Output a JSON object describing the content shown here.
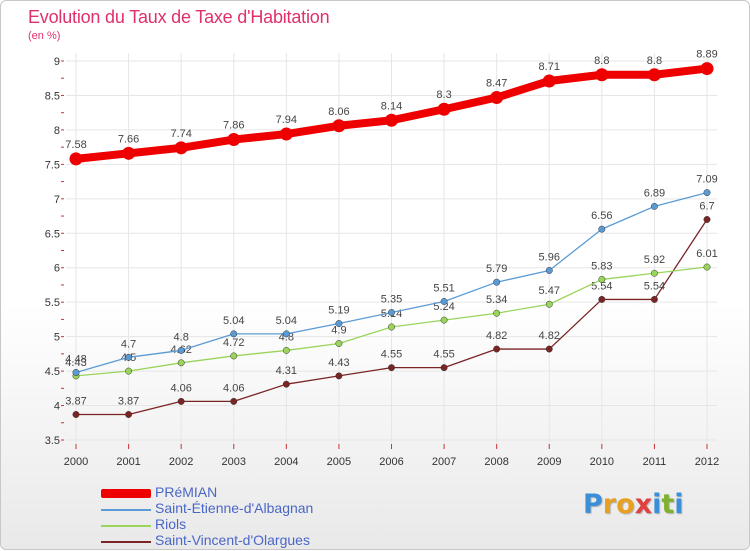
{
  "header": {
    "title": "Evolution du Taux de Taxe d'Habitation",
    "subtitle": "(en %)"
  },
  "logo": {
    "text": "Proxiti",
    "letters": [
      "P",
      "r",
      "o",
      "x",
      "i",
      "t",
      "i"
    ],
    "colors": [
      "#3a8fd6",
      "#e8a020",
      "#e8a020",
      "#e04040",
      "#3a8fd6",
      "#80b030",
      "#3a8fd6"
    ]
  },
  "colors": {
    "title": "#e0306c",
    "legend_text": "#4a67c8",
    "grid": "#e6e6e6",
    "axis_tick": "#cc3333"
  },
  "chart_data": {
    "type": "line",
    "title": "Evolution du Taux de Taxe d'Habitation",
    "subtitle": "(en %)",
    "x": [
      "2000",
      "2001",
      "2002",
      "2003",
      "2004",
      "2005",
      "2006",
      "2007",
      "2008",
      "2009",
      "2010",
      "2011",
      "2012"
    ],
    "ylim": [
      3.5,
      9
    ],
    "yticks": [
      "3.5",
      "4",
      "4.5",
      "5",
      "5.5",
      "6",
      "6.5",
      "7",
      "7.5",
      "8",
      "8.5",
      "9"
    ],
    "grid": true,
    "legend_position": "bottom-left",
    "series": [
      {
        "name": "PRéMIAN",
        "color": "#ee0000",
        "values": [
          7.58,
          7.66,
          7.74,
          7.86,
          7.94,
          8.06,
          8.14,
          8.3,
          8.47,
          8.71,
          8.8,
          8.8,
          8.89
        ],
        "labels": [
          "7.58",
          "7.66",
          "7.74",
          "7.86",
          "7.94",
          "8.06",
          "8.14",
          "8.3",
          "8.47",
          "8.71",
          "8.8",
          "8.8",
          "8.89"
        ]
      },
      {
        "name": "Saint-Étienne-d'Albagnan",
        "color": "#5b9bd5",
        "values": [
          4.48,
          4.7,
          4.8,
          5.04,
          5.04,
          5.19,
          5.35,
          5.51,
          5.79,
          5.96,
          6.56,
          6.89,
          7.09
        ],
        "labels": [
          "4.48",
          "4.7",
          "4.8",
          "5.04",
          "5.04",
          "5.19",
          "5.35",
          "5.51",
          "5.79",
          "5.96",
          "6.56",
          "6.89",
          "7.09"
        ]
      },
      {
        "name": "Riols",
        "color": "#9ad45a",
        "values": [
          4.43,
          4.5,
          4.62,
          4.72,
          4.8,
          4.9,
          5.14,
          5.24,
          5.34,
          5.47,
          5.83,
          5.92,
          6.01
        ],
        "labels": [
          "4.43",
          "4.5",
          "4.62",
          "4.72",
          "4.8",
          "4.9",
          "5.14",
          "5.24",
          "5.34",
          "5.47",
          "5.83",
          "5.92",
          "6.01"
        ]
      },
      {
        "name": "Saint-Vincent-d'Olargues",
        "color": "#7a2424",
        "values": [
          3.87,
          3.87,
          4.06,
          4.06,
          4.31,
          4.43,
          4.55,
          4.55,
          4.82,
          4.82,
          5.54,
          5.54,
          6.7
        ],
        "labels": [
          "3.87",
          "3.87",
          "4.06",
          "4.06",
          "4.31",
          "4.43",
          "4.55",
          "4.55",
          "4.82",
          "4.82",
          "5.54",
          "5.54",
          "6.7"
        ]
      }
    ]
  }
}
